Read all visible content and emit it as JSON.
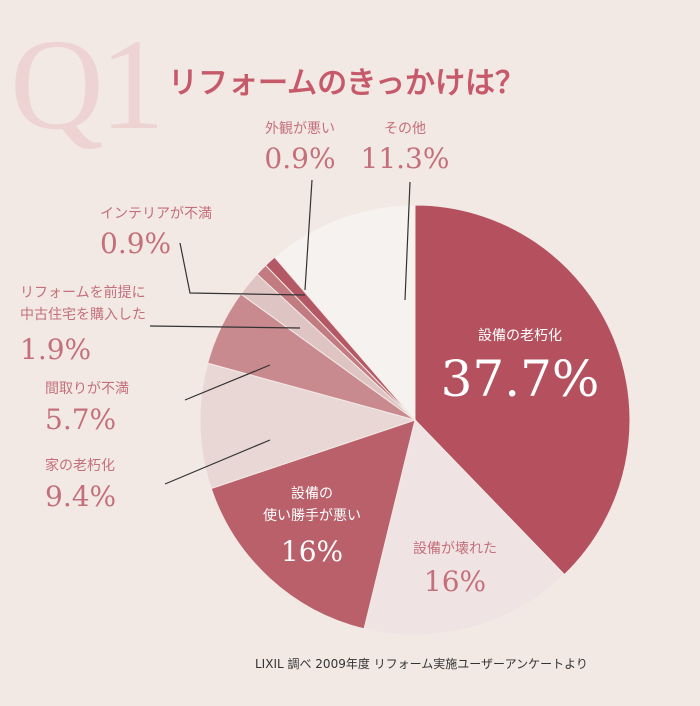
{
  "chart_data": {
    "type": "pie",
    "question": "Q1",
    "title": "リフォームのきっかけは？",
    "note": "LIXIL 調べ 2009年度 リフォーム実施ユーザーアンケートより",
    "categories": [
      "設備の老朽化",
      "設備が壊れた",
      "設備の\n使い勝手が悪い",
      "家の老朽化",
      "間取りが不満",
      "リフォームを前提に\n中古住宅を購入した",
      "インテリアが不満",
      "外観が悪い",
      "その他"
    ],
    "values": [
      37.7,
      16,
      16,
      9.4,
      5.7,
      1.9,
      0.9,
      0.9,
      11.3
    ],
    "value_labels": [
      "37.7%",
      "16%",
      "16%",
      "9.4%",
      "5.7%",
      "1.9%",
      "0.9%",
      "0.9%",
      "11.3%"
    ],
    "colors": [
      "#b5515f",
      "#efe4e3",
      "#b9606b",
      "#e9d7d6",
      "#c98a8f",
      "#dfc4c4",
      "#c27b81",
      "#b55865",
      "#f6f2ef"
    ]
  }
}
